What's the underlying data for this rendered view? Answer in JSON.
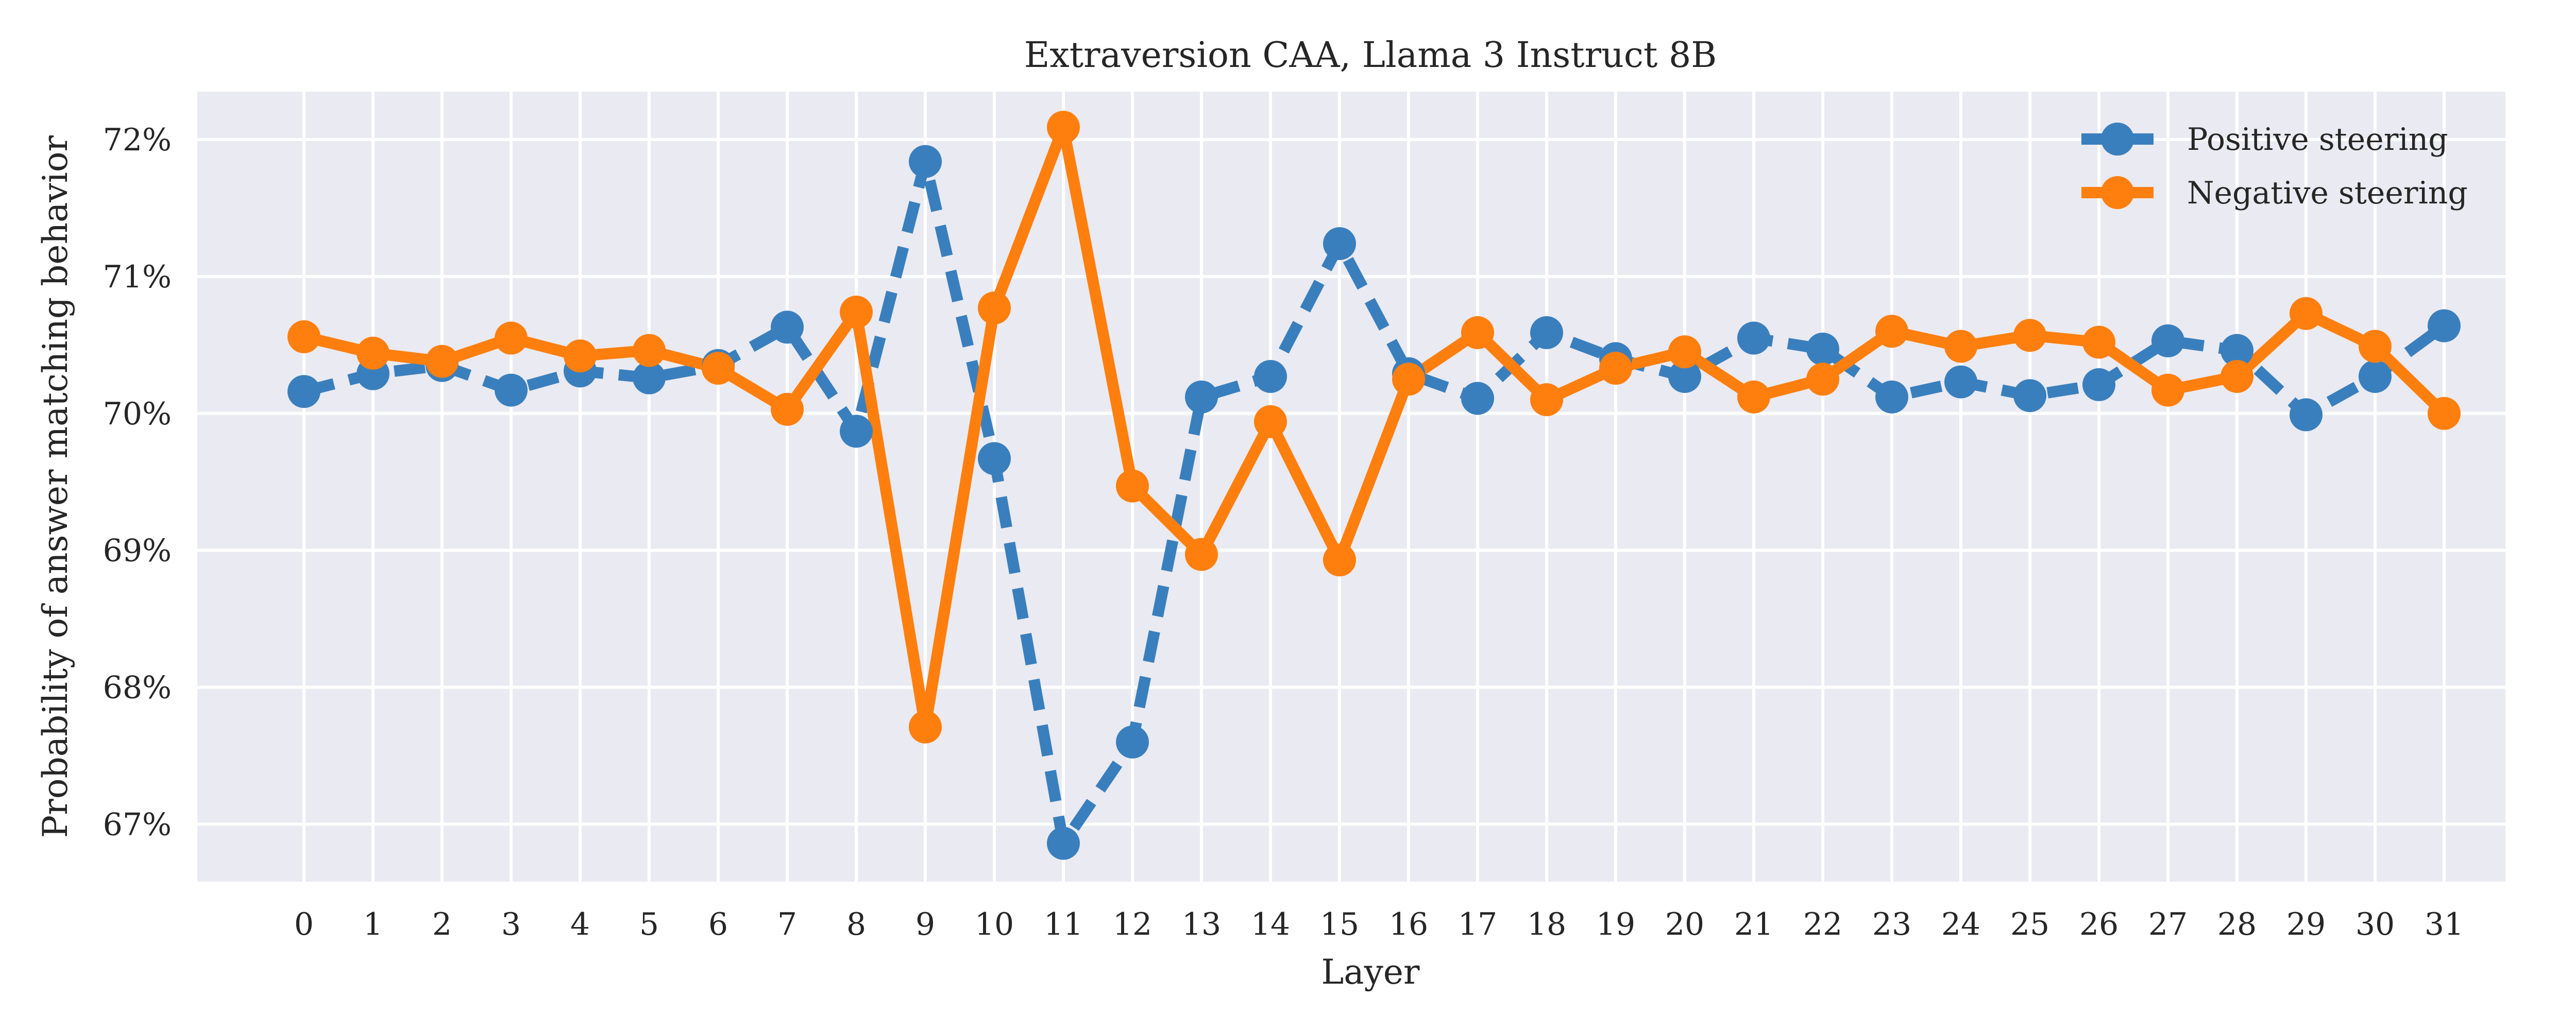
{
  "chart_data": {
    "type": "line",
    "title": "Extraversion CAA, Llama 3 Instruct 8B",
    "xlabel": "Layer",
    "ylabel": "Probability of answer matching behavior",
    "x": [
      0,
      1,
      2,
      3,
      4,
      5,
      6,
      7,
      8,
      9,
      10,
      11,
      12,
      13,
      14,
      15,
      16,
      17,
      18,
      19,
      20,
      21,
      22,
      23,
      24,
      25,
      26,
      27,
      28,
      29,
      30,
      31
    ],
    "xticks": [
      "0",
      "1",
      "2",
      "3",
      "4",
      "5",
      "6",
      "7",
      "8",
      "9",
      "10",
      "11",
      "12",
      "13",
      "14",
      "15",
      "16",
      "17",
      "18",
      "19",
      "20",
      "21",
      "22",
      "23",
      "24",
      "25",
      "26",
      "27",
      "28",
      "29",
      "30",
      "31"
    ],
    "yticks": [
      0.67,
      0.68,
      0.69,
      0.7,
      0.71,
      0.72
    ],
    "ytick_labels": [
      "67%",
      "68%",
      "69%",
      "70%",
      "71%",
      "72%"
    ],
    "ylim": [
      0.6658,
      0.7235
    ],
    "grid": true,
    "legend_position": "top-right",
    "series": [
      {
        "name": "Positive steering",
        "color": "#3a7fbd",
        "values": [
          0.7016,
          0.7029,
          0.7035,
          0.7017,
          0.7031,
          0.7026,
          0.7035,
          0.7063,
          0.6987,
          0.7184,
          0.6967,
          0.6686,
          0.676,
          0.7012,
          0.7027,
          0.7124,
          0.7029,
          0.7011,
          0.7059,
          0.704,
          0.7027,
          0.7055,
          0.7047,
          0.7012,
          0.7023,
          0.7013,
          0.7021,
          0.7053,
          0.7046,
          0.6999,
          0.7027,
          0.7064
        ]
      },
      {
        "name": "Negative steering",
        "color": "#fe7f0e",
        "values": [
          0.7056,
          0.7044,
          0.7038,
          0.7055,
          0.7042,
          0.7046,
          0.7033,
          0.7003,
          0.7074,
          0.6771,
          0.7077,
          0.7209,
          0.6947,
          0.6897,
          0.6994,
          0.6893,
          0.7025,
          0.7059,
          0.701,
          0.7033,
          0.7045,
          0.7012,
          0.7025,
          0.706,
          0.7049,
          0.7057,
          0.7052,
          0.7017,
          0.7027,
          0.7073,
          0.7049,
          0.7
        ]
      }
    ]
  }
}
